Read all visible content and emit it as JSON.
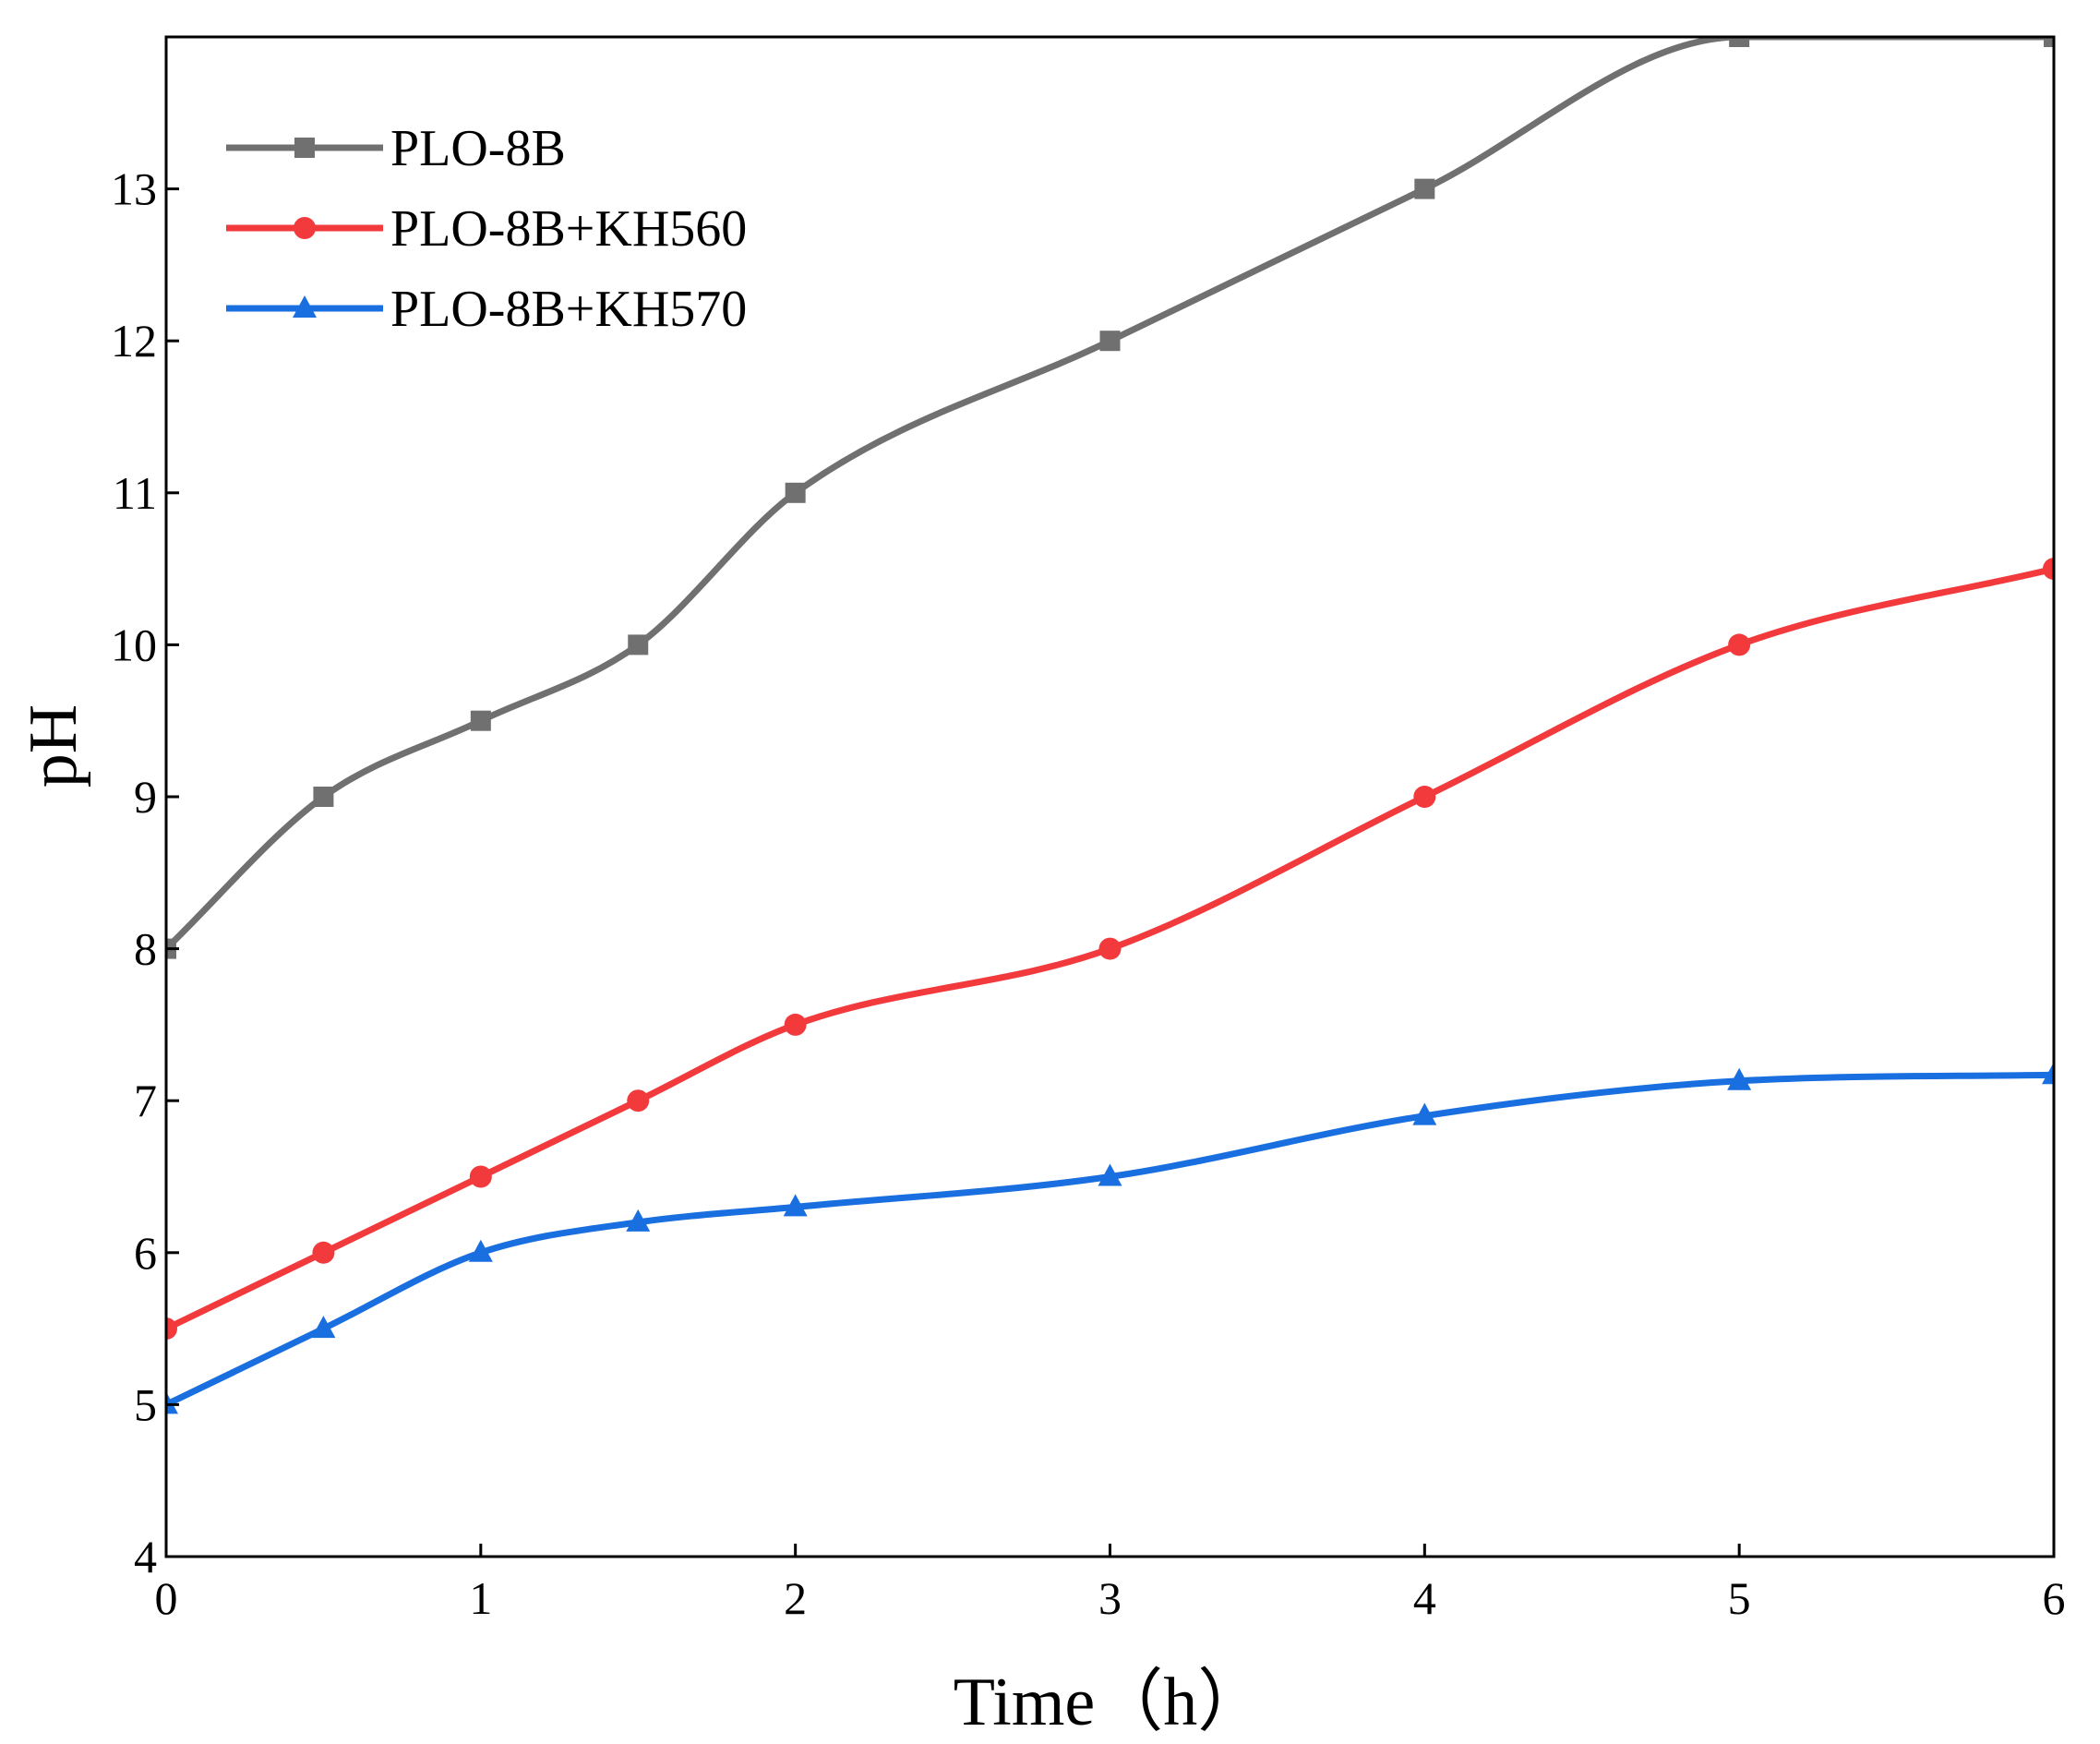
{
  "chart_data": {
    "type": "line",
    "title": "",
    "xlabel": "Time（h）",
    "ylabel": "pH",
    "xlim": [
      0,
      6
    ],
    "ylim": [
      4,
      14
    ],
    "xticks": [
      0,
      1,
      2,
      3,
      4,
      5,
      6
    ],
    "yticks": [
      4,
      5,
      6,
      7,
      8,
      9,
      10,
      11,
      12,
      13
    ],
    "grid": false,
    "legend_position": "top-left",
    "series": [
      {
        "name": "PLO-8B",
        "color": "#707070",
        "marker": "square",
        "x": [
          0,
          0.5,
          1,
          1.5,
          2,
          3,
          4,
          5,
          6
        ],
        "y": [
          8,
          9,
          9.5,
          10,
          11,
          12,
          13,
          14,
          14
        ]
      },
      {
        "name": "PLO-8B+KH560",
        "color": "#f23a3d",
        "marker": "circle",
        "x": [
          0,
          0.5,
          1,
          1.5,
          2,
          3,
          4,
          5,
          6
        ],
        "y": [
          5.5,
          6,
          6.5,
          7,
          7.5,
          8,
          9,
          10,
          10.5
        ]
      },
      {
        "name": "PLO-8B+KH570",
        "color": "#1a6fe0",
        "marker": "triangle",
        "x": [
          0,
          0.5,
          1,
          1.5,
          2,
          3,
          4,
          5,
          6
        ],
        "y": [
          5,
          5.5,
          6,
          6.2,
          6.3,
          6.5,
          6.9,
          7.13,
          7.17
        ]
      }
    ]
  }
}
